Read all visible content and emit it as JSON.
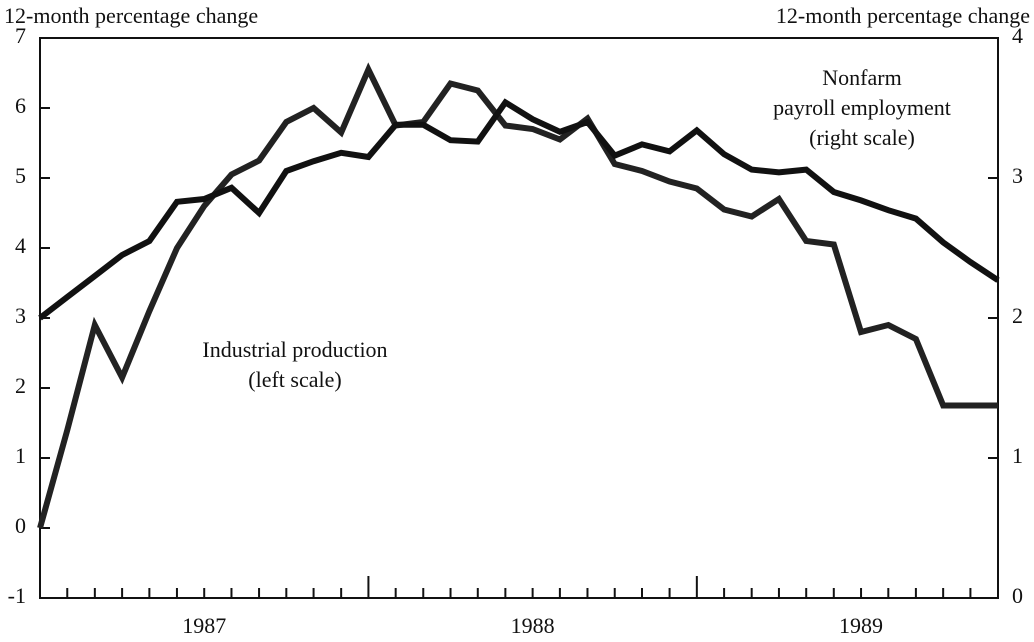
{
  "chart_data": {
    "type": "line",
    "y_axis_label": "12-month percentage change",
    "y2_axis_label": "12-month percentage change",
    "x": [
      1987,
      1987.083,
      1987.167,
      1987.25,
      1987.333,
      1987.417,
      1987.5,
      1987.583,
      1987.667,
      1987.75,
      1987.833,
      1987.917,
      1988,
      1988.083,
      1988.167,
      1988.25,
      1988.333,
      1988.417,
      1988.5,
      1988.583,
      1988.667,
      1988.75,
      1988.833,
      1988.917,
      1989,
      1989.083,
      1989.167,
      1989.25,
      1989.333,
      1989.417,
      1989.5,
      1989.583,
      1989.667,
      1989.75,
      1989.833,
      1989.917
    ],
    "xlim": [
      1987,
      1989.917
    ],
    "xticks": [
      {
        "value": 1987.5,
        "label": "1987"
      },
      {
        "value": 1988.5,
        "label": "1988"
      },
      {
        "value": 1989.5,
        "label": "1989"
      }
    ],
    "xticks_major": [
      1988,
      1989
    ],
    "xticks_minor": [
      1987.083,
      1987.167,
      1987.25,
      1987.333,
      1987.417,
      1987.5,
      1987.583,
      1987.667,
      1987.75,
      1987.833,
      1987.917,
      1988.083,
      1988.167,
      1988.25,
      1988.333,
      1988.417,
      1988.5,
      1988.583,
      1988.667,
      1988.75,
      1988.833,
      1988.917,
      1989.083,
      1989.167,
      1989.25,
      1989.333,
      1989.417,
      1989.5,
      1989.583,
      1989.667,
      1989.75,
      1989.833
    ],
    "ylim": [
      -1,
      7
    ],
    "yticks": [
      -1,
      0,
      1,
      2,
      3,
      4,
      5,
      6,
      7
    ],
    "y2lim": [
      0,
      4
    ],
    "y2ticks": [
      0,
      1,
      2,
      3,
      4
    ],
    "series": [
      {
        "label_lines": [
          "Industrial production",
          "(left scale)"
        ],
        "color": "#222222",
        "axis": "y",
        "values": [
          0.0,
          1.4,
          2.9,
          2.15,
          3.1,
          4.0,
          4.6,
          5.05,
          5.25,
          5.8,
          6.0,
          5.65,
          6.55,
          5.75,
          5.8,
          6.35,
          6.25,
          5.75,
          5.7,
          5.55,
          5.85,
          5.2,
          5.1,
          4.95,
          4.85,
          4.55,
          4.45,
          4.7,
          4.1,
          4.05,
          2.8,
          2.9,
          2.7,
          1.75,
          1.75,
          1.75
        ]
      },
      {
        "label_lines": [
          "Nonfarm",
          "payroll employment",
          "(right scale)"
        ],
        "color": "#111111",
        "axis": "y2",
        "values": [
          2.0,
          2.15,
          2.3,
          2.45,
          2.55,
          2.83,
          2.85,
          2.93,
          2.75,
          3.05,
          3.12,
          3.18,
          3.15,
          3.38,
          3.38,
          3.27,
          3.26,
          3.54,
          3.42,
          3.33,
          3.4,
          3.16,
          3.24,
          3.19,
          3.34,
          3.17,
          3.06,
          3.04,
          3.06,
          2.9,
          2.84,
          2.77,
          2.71,
          2.54,
          2.4,
          2.27
        ]
      }
    ]
  }
}
